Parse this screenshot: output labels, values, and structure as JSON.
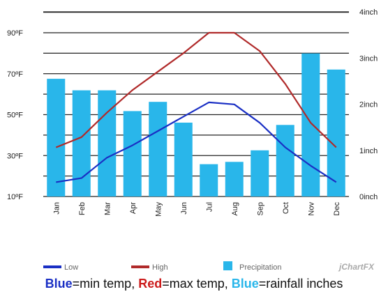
{
  "chart_data": {
    "type": "bar",
    "categories": [
      "Jan",
      "Feb",
      "Mar",
      "Apr",
      "May",
      "Jun",
      "Jul",
      "Aug",
      "Sep",
      "Oct",
      "Nov",
      "Dec"
    ],
    "series": [
      {
        "name": "Low",
        "type": "line",
        "axis": "left",
        "color": "#1a2fc4",
        "values": [
          17,
          19,
          29,
          35,
          42,
          49,
          56,
          55,
          46,
          34,
          25,
          17
        ]
      },
      {
        "name": "High",
        "type": "line",
        "axis": "left",
        "color": "#b02a2a",
        "values": [
          34,
          39,
          51,
          62,
          71,
          80,
          90,
          90,
          81,
          65,
          46,
          34
        ]
      },
      {
        "name": "Precipitation",
        "type": "bar",
        "axis": "right",
        "color": "#29b6ea",
        "values": [
          2.55,
          2.3,
          2.3,
          1.85,
          2.05,
          1.6,
          0.7,
          0.75,
          1.0,
          1.55,
          3.1,
          2.75
        ]
      }
    ],
    "y_left": {
      "ticks": [
        "10ºF",
        "30ºF",
        "50ºF",
        "70ºF",
        "90ºF"
      ],
      "ylim": [
        10,
        90
      ],
      "gridlines": [
        10,
        20,
        30,
        40,
        50,
        60,
        70,
        80,
        90,
        100
      ]
    },
    "y_right": {
      "ticks": [
        "0inch",
        "1inch",
        "2inch",
        "3inch",
        "4inch"
      ],
      "ylim": [
        0,
        4
      ]
    },
    "grid": true,
    "legend": {
      "position": "bottom",
      "items": [
        "Low",
        "High",
        "Precipitation"
      ]
    },
    "watermark": "jChartFX"
  },
  "caption": {
    "part1_key": "Blue",
    "part1_text": "=min temp, ",
    "part2_key": "Red",
    "part2_text": "=max temp, ",
    "part3_key": "Blue",
    "part3_text": "=rainfall inches",
    "colors": {
      "part1": "#1a2fc4",
      "part2": "#cc1b1b",
      "part3": "#29b6ea"
    }
  }
}
